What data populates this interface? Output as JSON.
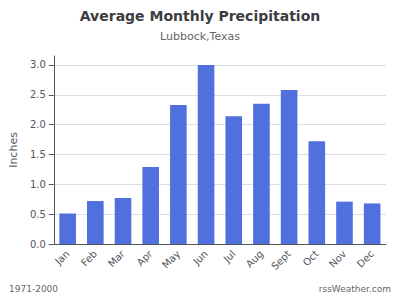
{
  "chart_data": {
    "type": "bar",
    "title": "Average Monthly Precipitation",
    "subtitle": "Lubbock,Texas",
    "ylabel": "Inches",
    "categories": [
      "Jan",
      "Feb",
      "Mar",
      "Apr",
      "May",
      "Jun",
      "Jul",
      "Aug",
      "Sept",
      "Oct",
      "Nov",
      "Dec"
    ],
    "values": [
      0.51,
      0.72,
      0.77,
      1.29,
      2.33,
      3.0,
      2.14,
      2.35,
      2.58,
      1.72,
      0.71,
      0.68
    ],
    "ylim": [
      0.0,
      3.15
    ],
    "yticks": [
      {
        "value": 0.0,
        "label": "0.0"
      },
      0.5,
      {
        "value": 1.0,
        "label": "1.0"
      },
      1.5,
      {
        "value": 2.0,
        "label": "2.0"
      },
      2.5,
      {
        "value": 3.0,
        "label": "3.0"
      }
    ],
    "grid": true,
    "annotations": [
      "1971-2000",
      "rssWeather.com"
    ]
  }
}
